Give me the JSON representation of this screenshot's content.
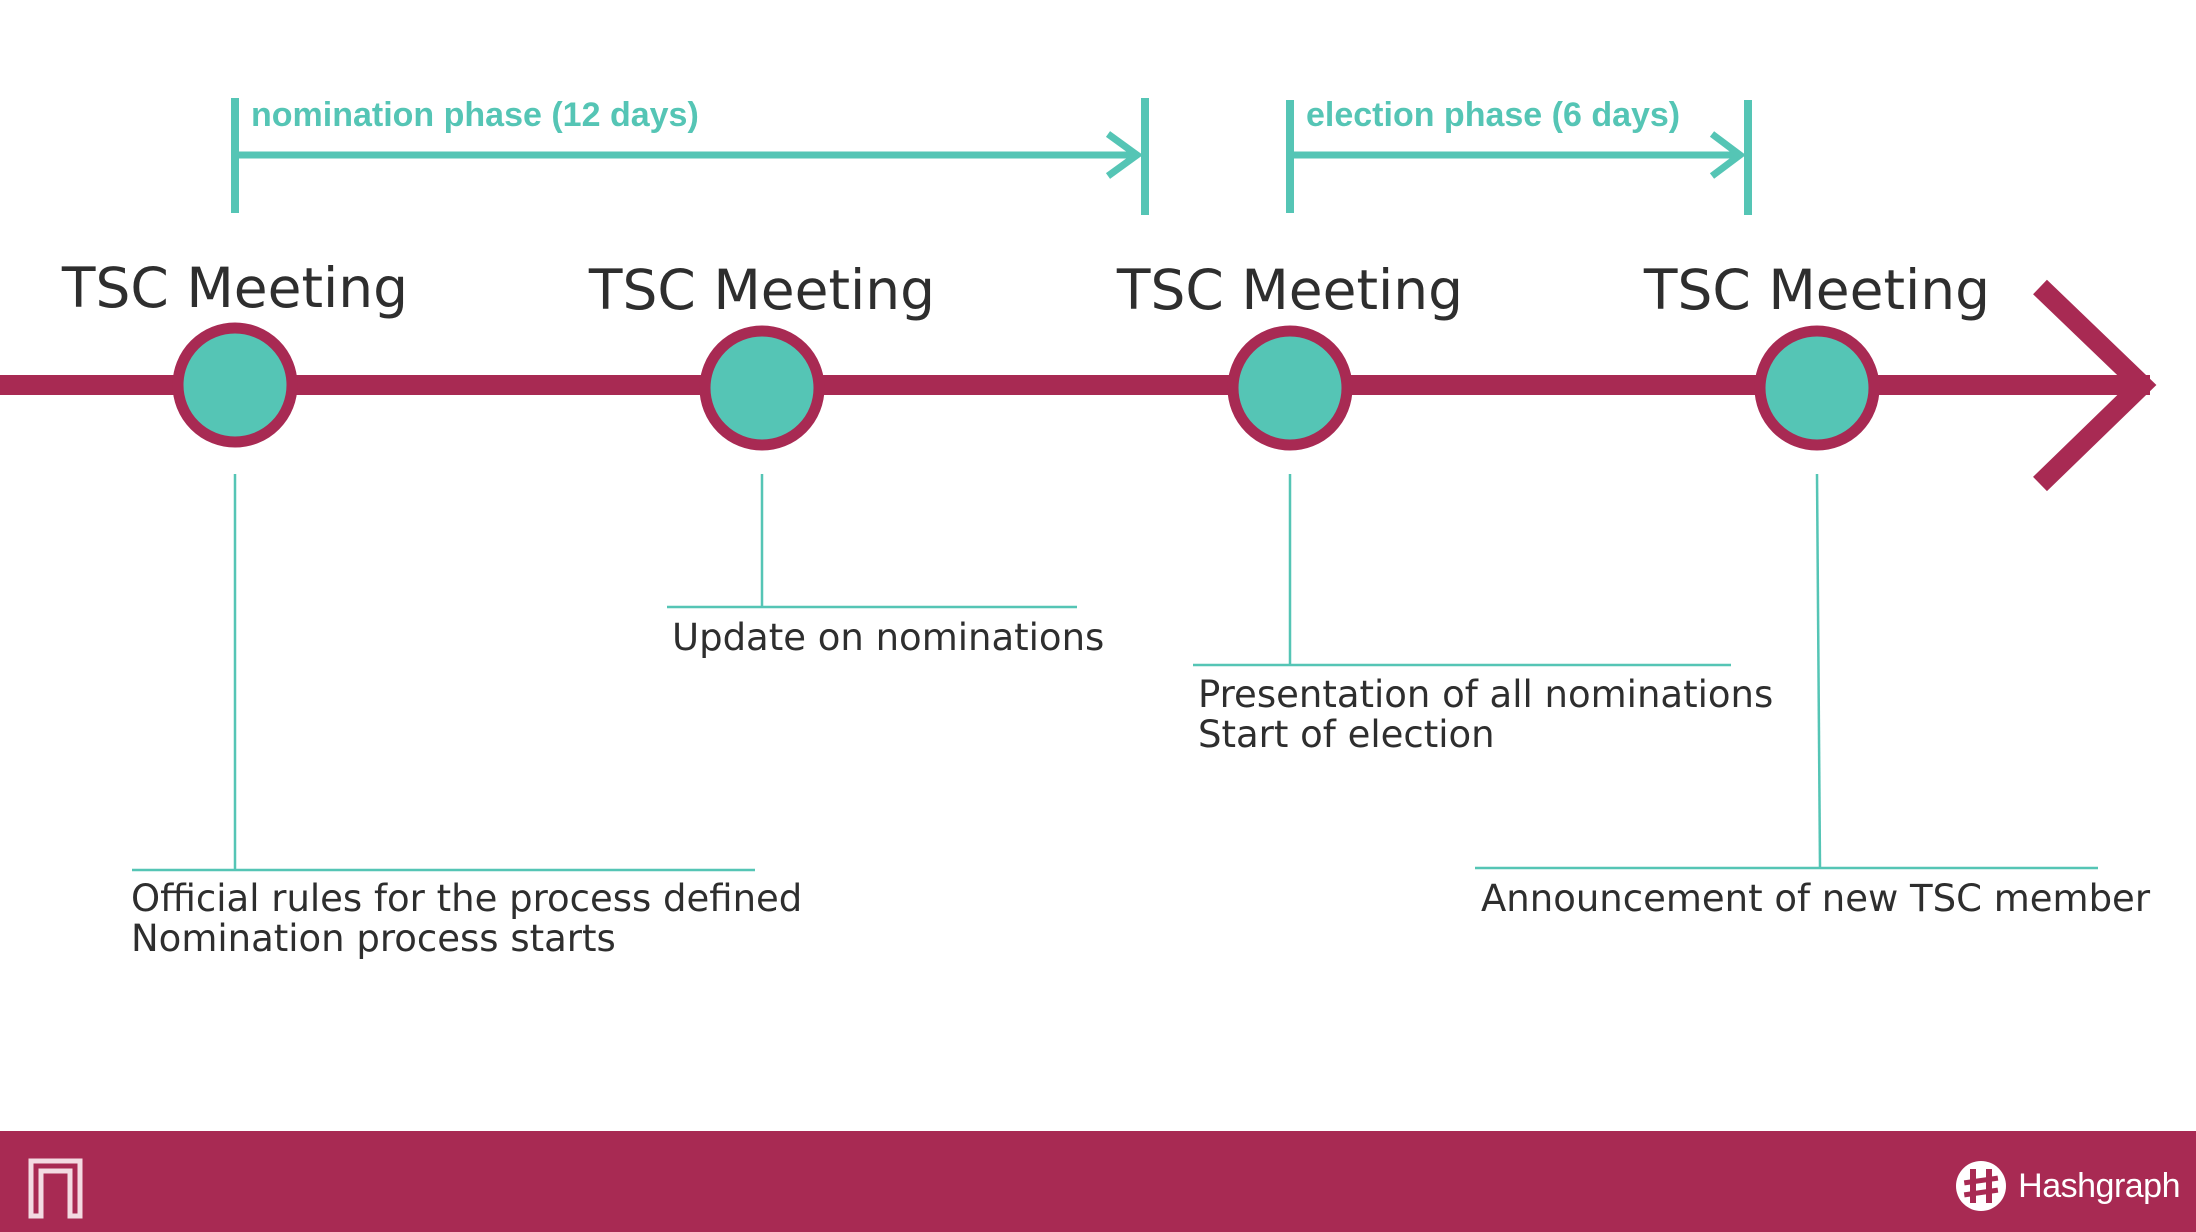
{
  "phases": [
    {
      "label": "nomination phase (12 days)"
    },
    {
      "label": "election phase (6 days)"
    }
  ],
  "meetings": [
    {
      "label": "TSC Meeting",
      "notes": [
        "Official rules for the process defined",
        "Nomination process starts"
      ]
    },
    {
      "label": "TSC Meeting",
      "notes": [
        "Update on nominations"
      ]
    },
    {
      "label": "TSC Meeting",
      "notes": [
        "Presentation of all nominations",
        "Start of election"
      ]
    },
    {
      "label": "TSC Meeting",
      "notes": [
        "Announcement of new TSC member"
      ]
    }
  ],
  "footer": {
    "brand": "Hashgraph",
    "left_logo_icon": "bracket-logo-icon",
    "brand_icon": "hashgraph-logo-icon"
  },
  "colors": {
    "timeline": "#a82a53",
    "accent": "#55c5b5",
    "text": "#2e2e2e"
  }
}
